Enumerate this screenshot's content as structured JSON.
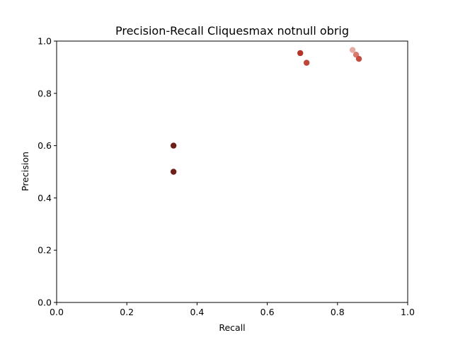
{
  "chart_data": {
    "type": "scatter",
    "title": "Precision-Recall Cliquesmax notnull obrig",
    "xlabel": "Recall",
    "ylabel": "Precision",
    "xlim": [
      0.0,
      1.0
    ],
    "ylim": [
      0.0,
      1.0
    ],
    "xticks": [
      "0.0",
      "0.2",
      "0.4",
      "0.6",
      "0.8",
      "1.0"
    ],
    "yticks": [
      "0.0",
      "0.2",
      "0.4",
      "0.6",
      "0.8",
      "1.0"
    ],
    "grid": false,
    "points": [
      {
        "x": 0.333,
        "y": 0.6,
        "color": "#6e1f17"
      },
      {
        "x": 0.333,
        "y": 0.5,
        "color": "#6e1f17"
      },
      {
        "x": 0.694,
        "y": 0.954,
        "color": "#b5352a"
      },
      {
        "x": 0.712,
        "y": 0.917,
        "color": "#c0463a"
      },
      {
        "x": 0.843,
        "y": 0.966,
        "color": "#e6aaa5"
      },
      {
        "x": 0.853,
        "y": 0.948,
        "color": "#d9786f"
      },
      {
        "x": 0.861,
        "y": 0.932,
        "color": "#c44b3e"
      }
    ]
  }
}
